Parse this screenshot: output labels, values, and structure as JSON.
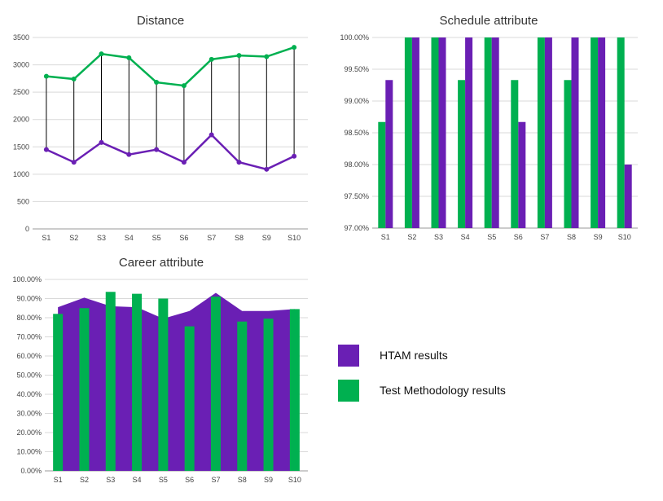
{
  "colors": {
    "htam": "#6a1fb4",
    "test": "#00b050",
    "grid": "#d9d9d9",
    "axis": "#999999",
    "connector": "#000000"
  },
  "legend": {
    "htam_label": "HTAM results",
    "test_label": "Test Methodology results"
  },
  "chart_data": [
    {
      "type": "line",
      "title": "Distance",
      "categories": [
        "S1",
        "S2",
        "S3",
        "S4",
        "S5",
        "S6",
        "S7",
        "S8",
        "S9",
        "S10"
      ],
      "y_ticks": [
        "0",
        "500",
        "1000",
        "1500",
        "2000",
        "2500",
        "3000",
        "3500"
      ],
      "ylim": [
        0,
        3500
      ],
      "series": [
        {
          "name": "Test Methodology results",
          "color_key": "test",
          "values": [
            2790,
            2740,
            3200,
            3130,
            2680,
            2620,
            3100,
            3170,
            3150,
            3320
          ]
        },
        {
          "name": "HTAM results",
          "color_key": "htam",
          "values": [
            1450,
            1220,
            1580,
            1360,
            1450,
            1220,
            1720,
            1220,
            1090,
            1330
          ]
        }
      ]
    },
    {
      "type": "bar",
      "title": "Schedule attribute",
      "categories": [
        "S1",
        "S2",
        "S3",
        "S4",
        "S5",
        "S6",
        "S7",
        "S8",
        "S9",
        "S10"
      ],
      "y_ticks": [
        "97.00%",
        "97.50%",
        "98.00%",
        "98.50%",
        "99.00%",
        "99.50%",
        "100.00%"
      ],
      "ylim": [
        97.0,
        100.0
      ],
      "series": [
        {
          "name": "Test Methodology results",
          "color_key": "test",
          "values": [
            98.67,
            100,
            100,
            99.33,
            100,
            99.33,
            100,
            99.33,
            100,
            100
          ]
        },
        {
          "name": "HTAM results",
          "color_key": "htam",
          "values": [
            99.33,
            100,
            100,
            100,
            100,
            98.67,
            100,
            100,
            100,
            98.0
          ]
        }
      ]
    },
    {
      "type": "area+bar",
      "title": "Career attribute",
      "categories": [
        "S1",
        "S2",
        "S3",
        "S4",
        "S5",
        "S6",
        "S7",
        "S8",
        "S9",
        "S10"
      ],
      "y_ticks": [
        "0.00%",
        "10.00%",
        "20.00%",
        "30.00%",
        "40.00%",
        "50.00%",
        "60.00%",
        "70.00%",
        "80.00%",
        "90.00%",
        "100.00%"
      ],
      "ylim": [
        0,
        100
      ],
      "series": [
        {
          "name": "HTAM results",
          "color_key": "htam",
          "chart": "area",
          "values": [
            85.5,
            90.5,
            86.0,
            85.5,
            79.5,
            83.5,
            93.0,
            83.5,
            83.5,
            84.5
          ]
        },
        {
          "name": "Test Methodology results",
          "color_key": "test",
          "chart": "bar",
          "values": [
            82.0,
            85.0,
            93.5,
            92.5,
            90.0,
            75.5,
            91.0,
            78.0,
            79.5,
            84.5
          ]
        }
      ]
    }
  ]
}
